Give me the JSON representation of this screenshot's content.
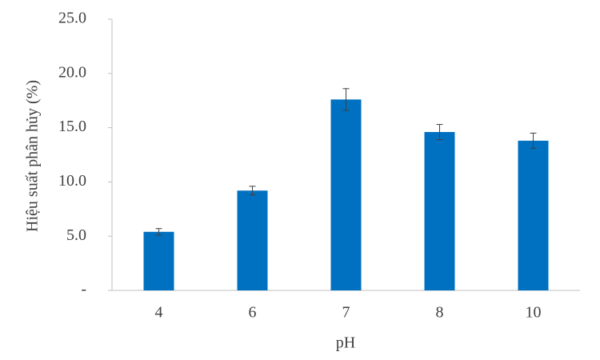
{
  "chart_data": {
    "type": "bar",
    "categories": [
      "4",
      "6",
      "7",
      "8",
      "10"
    ],
    "values": [
      5.4,
      9.2,
      17.6,
      14.6,
      13.8
    ],
    "errors": [
      0.3,
      0.4,
      1.0,
      0.7,
      0.7
    ],
    "color": "#0070c0",
    "x_label": "pH",
    "y_label": "Hiệu suất phân hủy (%)",
    "ylim": [
      0,
      25
    ],
    "yticks": [
      {
        "value": 0,
        "label": "-"
      },
      {
        "value": 5,
        "label": "5.0"
      },
      {
        "value": 10,
        "label": "10.0"
      },
      {
        "value": 15,
        "label": "15.0"
      },
      {
        "value": 20,
        "label": "20.0"
      },
      {
        "value": 25,
        "label": "25.0"
      }
    ]
  }
}
